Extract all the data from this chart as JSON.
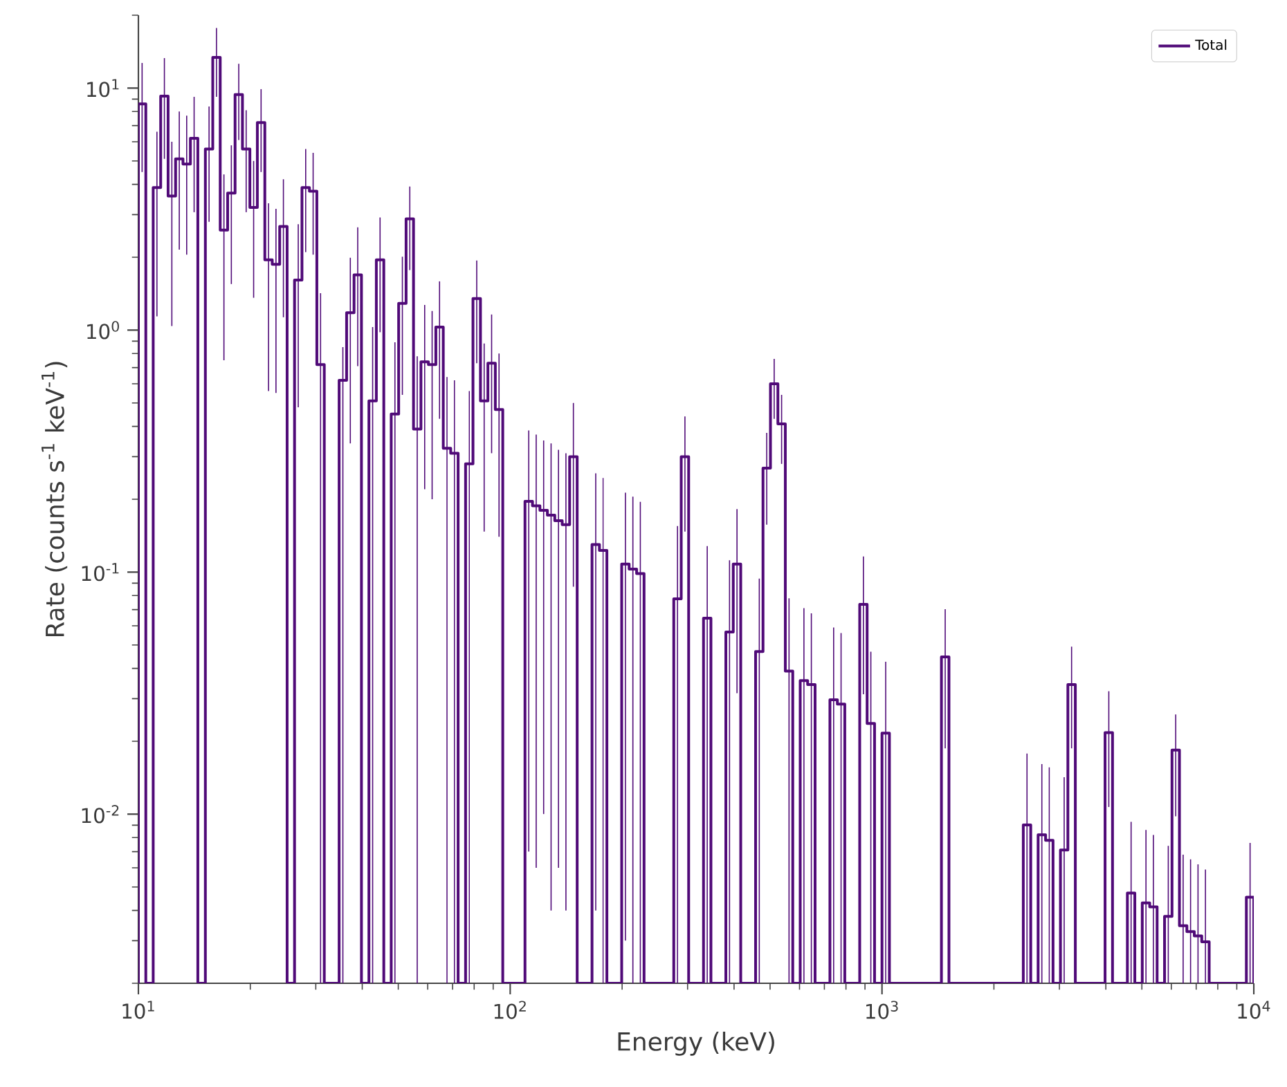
{
  "chart_data": {
    "type": "histogram",
    "xlabel": "Energy (keV)",
    "ylabel": "Rate (counts s$^{-1}$ keV$^{-1}$)",
    "log": "xy",
    "legend": "top right",
    "xlim": [
      10,
      10000
    ],
    "ylim": [
      0.002,
      20
    ],
    "xticks": [
      {
        "value": 10,
        "label": "10$^{1}$"
      },
      {
        "value": 100,
        "label": "10$^{2}$"
      },
      {
        "value": 1000,
        "label": "10$^{3}$"
      },
      {
        "value": 10000,
        "label": "10$^{4}$"
      }
    ],
    "yticks": [
      {
        "value": 0.01,
        "label": "10$^{-2}$"
      },
      {
        "value": 0.1,
        "label": "10$^{-1}$"
      },
      {
        "value": 1,
        "label": "10$^{0}$"
      },
      {
        "value": 10,
        "label": "10$^{1}$"
      }
    ],
    "bins": [
      10,
      10.47,
      10.96,
      11.48,
      12.02,
      12.59,
      13.18,
      13.8,
      14.45,
      15.14,
      15.85,
      16.6,
      17.38,
      18.2,
      19.05,
      19.95,
      20.89,
      21.88,
      22.91,
      23.99,
      25.12,
      26.3,
      27.54,
      28.84,
      30.2,
      31.62,
      33.11,
      34.67,
      36.31,
      38.02,
      39.81,
      41.69,
      43.65,
      45.71,
      47.86,
      50.12,
      52.48,
      54.95,
      57.54,
      60.26,
      63.1,
      66.07,
      69.18,
      72.44,
      75.86,
      79.43,
      83.18,
      87.1,
      91.2,
      95.5,
      100,
      104.7,
      109.6,
      114.8,
      120.2,
      125.9,
      131.8,
      138,
      144.5,
      151.4,
      158.5,
      166,
      173.8,
      182,
      190.5,
      199.5,
      208.9,
      218.8,
      229.1,
      239.9,
      251.2,
      263,
      275.4,
      288.4,
      302,
      316.2,
      331.1,
      346.7,
      363.1,
      380.2,
      398.1,
      416.9,
      436.5,
      457.1,
      478.6,
      501.2,
      524.8,
      549.5,
      575.4,
      602.6,
      631,
      660.7,
      691.8,
      724.4,
      758.6,
      794.3,
      831.8,
      871,
      912,
      955,
      1000,
      1047,
      1096,
      1148,
      1202,
      1259,
      1318,
      1380,
      1445,
      1514,
      1585,
      1660,
      1738,
      1820,
      1905,
      1995,
      2089,
      2188,
      2291,
      2399,
      2512,
      2630,
      2754,
      2884,
      3020,
      3162,
      3311,
      3467,
      3631,
      3802,
      3981,
      4169,
      4365,
      4571,
      4786,
      5012,
      5248,
      5495,
      5754,
      6026,
      6310,
      6607,
      6918,
      7244,
      7586,
      7943,
      8318,
      8710,
      9120,
      9550,
      10000
    ],
    "series": [
      {
        "name": "Total",
        "color": "#500a78",
        "values": [
          8.6,
          null,
          3.88,
          9.27,
          3.58,
          5.1,
          4.85,
          6.2,
          null,
          5.6,
          13.4,
          2.59,
          3.68,
          9.4,
          5.6,
          3.21,
          7.2,
          1.95,
          1.87,
          2.68,
          null,
          1.61,
          3.88,
          3.75,
          0.72,
          null,
          null,
          0.62,
          1.18,
          1.69,
          null,
          0.51,
          1.95,
          null,
          0.45,
          1.29,
          2.88,
          0.39,
          0.74,
          0.72,
          1.03,
          0.325,
          0.31,
          null,
          0.28,
          1.35,
          0.51,
          0.73,
          0.47,
          null,
          null,
          null,
          0.196,
          0.188,
          0.18,
          0.172,
          0.163,
          0.157,
          0.3,
          null,
          null,
          0.13,
          0.123,
          null,
          null,
          0.108,
          0.103,
          0.0986,
          null,
          null,
          null,
          null,
          0.0776,
          0.3,
          null,
          null,
          0.0645,
          null,
          null,
          0.0566,
          0.108,
          null,
          null,
          0.047,
          0.269,
          0.6,
          0.41,
          0.039,
          null,
          0.0356,
          0.0343,
          null,
          null,
          0.0297,
          0.0285,
          null,
          null,
          0.0736,
          0.0237,
          null,
          0.0216,
          null,
          null,
          null,
          null,
          null,
          null,
          null,
          0.0446,
          null,
          null,
          null,
          null,
          null,
          null,
          null,
          null,
          null,
          null,
          0.00903,
          null,
          0.00822,
          0.0078,
          null,
          0.00711,
          0.0343,
          null,
          null,
          null,
          null,
          0.0217,
          null,
          null,
          0.00472,
          null,
          0.0043,
          0.00414,
          null,
          0.00378,
          0.0184,
          0.00346,
          0.00327,
          0.00314,
          0.00297,
          null,
          null,
          null,
          null,
          null,
          0.00454
        ],
        "errors": [
          [
            4.5,
            12.7
          ],
          null,
          [
            1.14,
            6.6
          ],
          [
            5.1,
            13.3
          ],
          [
            1.04,
            6.0
          ],
          [
            2.15,
            8.0
          ],
          [
            2.05,
            7.7
          ],
          [
            3.07,
            9.2
          ],
          null,
          [
            2.8,
            8.4
          ],
          [
            9.2,
            17.7
          ],
          [
            0.75,
            4.4
          ],
          [
            1.55,
            5.8
          ],
          [
            6.1,
            12.6
          ],
          [
            3.07,
            8.1
          ],
          [
            1.36,
            5.0
          ],
          [
            4.5,
            9.9
          ],
          [
            0.56,
            3.34
          ],
          [
            0.55,
            3.17
          ],
          [
            1.13,
            4.2
          ],
          null,
          [
            0.48,
            2.74
          ],
          [
            2.1,
            5.6
          ],
          [
            2.05,
            5.4
          ],
          [
            0.002,
            1.42
          ],
          null,
          null,
          [
            0.002,
            0.85
          ],
          [
            0.34,
            1.99
          ],
          [
            0.71,
            2.66
          ],
          null,
          [
            0.002,
            1.03
          ],
          [
            0.98,
            2.92
          ],
          null,
          [
            0.002,
            0.89
          ],
          [
            0.54,
            2.01
          ],
          [
            1.77,
            3.92
          ],
          [
            0.002,
            0.78
          ],
          [
            0.22,
            1.27
          ],
          [
            0.2,
            1.2
          ],
          [
            0.43,
            1.59
          ],
          [
            0.002,
            0.64
          ],
          [
            0.002,
            0.62
          ],
          null,
          [
            0.002,
            0.56
          ],
          [
            0.73,
            1.94
          ],
          [
            0.147,
            0.88
          ],
          [
            0.31,
            1.16
          ],
          [
            0.14,
            0.8
          ],
          null,
          null,
          null,
          [
            0.007,
            0.385
          ],
          [
            0.006,
            0.37
          ],
          [
            0.01,
            0.35
          ],
          [
            0.004,
            0.34
          ],
          [
            0.006,
            0.32
          ],
          [
            0.004,
            0.31
          ],
          [
            0.087,
            0.5
          ],
          null,
          null,
          [
            0.004,
            0.256
          ],
          [
            0.002,
            0.245
          ],
          null,
          null,
          [
            0.003,
            0.213
          ],
          [
            0.002,
            0.205
          ],
          [
            0.002,
            0.195
          ],
          null,
          null,
          null,
          null,
          [
            0.002,
            0.155
          ],
          [
            0.147,
            0.44
          ],
          null,
          null,
          [
            0.002,
            0.128
          ],
          null,
          null,
          [
            0.002,
            0.112
          ],
          [
            0.0316,
            0.182
          ],
          null,
          null,
          [
            0.002,
            0.094
          ],
          [
            0.157,
            0.376
          ],
          [
            0.43,
            0.76
          ],
          [
            0.28,
            0.54
          ],
          [
            0.002,
            0.078
          ],
          null,
          [
            0.002,
            0.071
          ],
          [
            0.002,
            0.0676
          ],
          null,
          null,
          [
            0.002,
            0.059
          ],
          [
            0.002,
            0.056
          ],
          null,
          null,
          [
            0.0313,
            0.116
          ],
          [
            0.002,
            0.0469
          ],
          null,
          [
            0.002,
            0.0426
          ],
          null,
          null,
          null,
          null,
          null,
          null,
          null,
          [
            0.0187,
            0.0703
          ],
          null,
          null,
          null,
          null,
          null,
          null,
          null,
          null,
          null,
          null,
          [
            0.002,
            0.0178
          ],
          null,
          [
            0.002,
            0.0161
          ],
          [
            0.002,
            0.0156
          ],
          null,
          [
            0.002,
            0.0142
          ],
          [
            0.0187,
            0.0492
          ],
          null,
          null,
          null,
          null,
          [
            0.0107,
            0.0322
          ],
          null,
          null,
          [
            0.002,
            0.0093
          ],
          null,
          [
            0.002,
            0.0086
          ],
          [
            0.002,
            0.0082
          ],
          null,
          [
            0.002,
            0.0074
          ],
          [
            0.0098,
            0.0258
          ],
          [
            0.002,
            0.0068
          ],
          [
            0.002,
            0.0065
          ],
          [
            0.002,
            0.0062
          ],
          [
            0.002,
            0.0059
          ],
          null,
          null,
          null,
          null,
          null,
          [
            0.002,
            0.0076
          ]
        ]
      }
    ]
  }
}
